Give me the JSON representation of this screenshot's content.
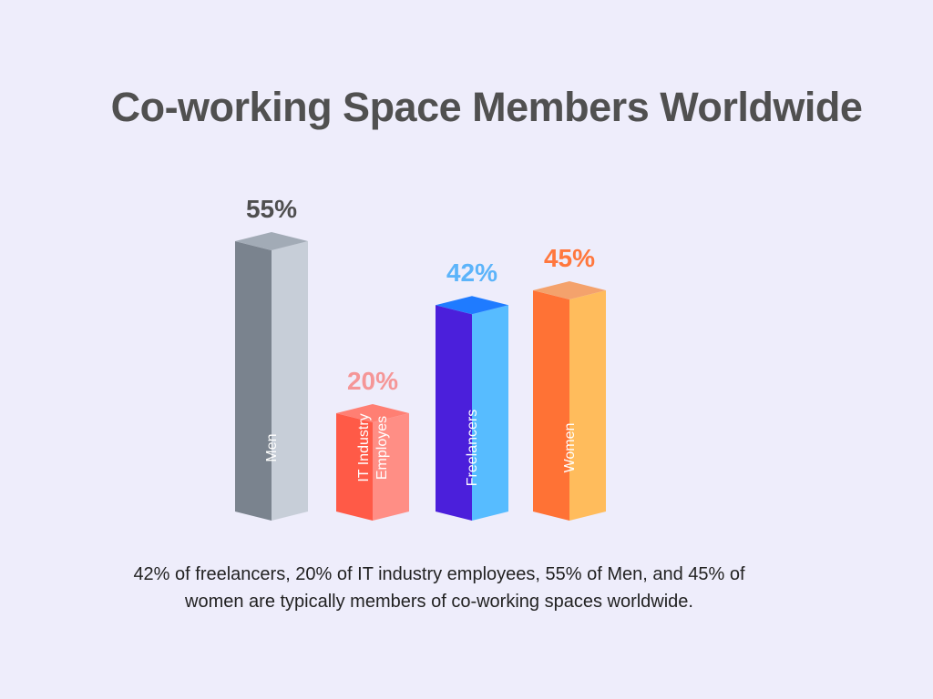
{
  "title": "Co-working Space Members Worldwide",
  "caption": "42% of freelancers, 20% of IT industry employees, 55% of Men, and 45% of women are typically members of co-working spaces worldwide.",
  "chart_data": {
    "type": "bar",
    "categories": [
      "Men",
      "IT Industry Employes",
      "Freelancers",
      "Women"
    ],
    "category_lines": [
      [
        "Men"
      ],
      [
        "IT Industry",
        "Employes"
      ],
      [
        "Freelancers"
      ],
      [
        "Women"
      ]
    ],
    "values": [
      55,
      20,
      42,
      45
    ],
    "value_labels": [
      "55%",
      "20%",
      "42%",
      "45%"
    ],
    "ylim": [
      0,
      60
    ],
    "colors": [
      {
        "front": "#7A838E",
        "side": "#C7CED8",
        "top": "#A2ABB6",
        "label": "#4F4F4F"
      },
      {
        "front": "#FF5A47",
        "side": "#FF8E85",
        "top": "#FF7F73",
        "label": "#F59697"
      },
      {
        "front": "#4B1FDB",
        "side": "#57BCFF",
        "top": "#1F7BFF",
        "label": "#5CB4FA"
      },
      {
        "front": "#FF7235",
        "side": "#FFBC5C",
        "top": "#F4A26C",
        "label": "#FF773D"
      }
    ]
  }
}
